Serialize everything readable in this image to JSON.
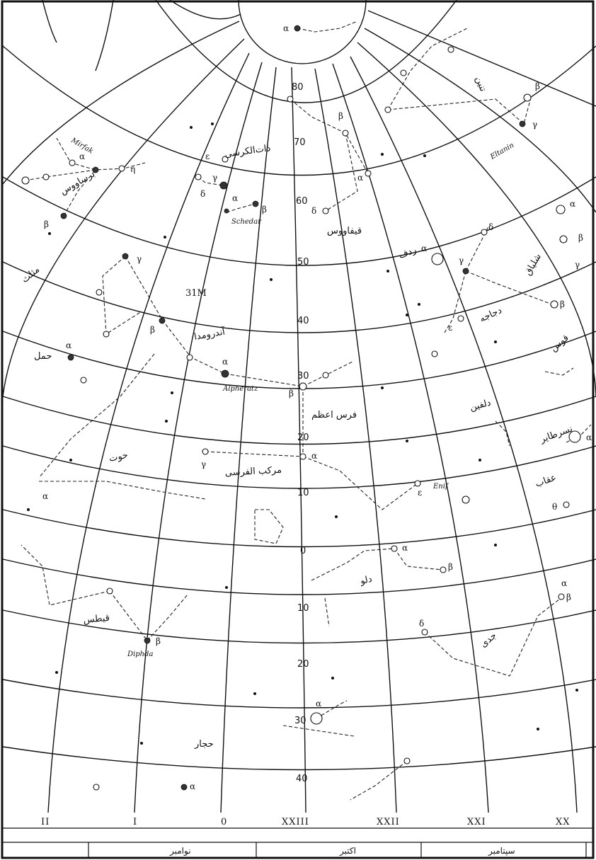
{
  "declination_labels": [
    "80",
    "70",
    "60",
    "50",
    "40",
    "30",
    "20",
    "10",
    "0",
    "10",
    "20",
    "30",
    "40"
  ],
  "ra_labels": [
    "II",
    "I",
    "0",
    "XXIII",
    "XXII",
    "XXI",
    "XX"
  ],
  "month_labels": [
    "نوامبر",
    "اکتبر",
    "سپتامبر"
  ],
  "constellations": {
    "tannin": "تنین",
    "dhat_al_kursi": "ذات‌الکرسی",
    "barsawus": "برساووس",
    "qifawus": "قیفاووس",
    "mosallas": "مثلث",
    "radf": "ردف",
    "shaliyaq": "شلیاق",
    "dajaja": "دجاجه",
    "andromeda": "آندرومدا",
    "hamal": "حمل",
    "qaws": "قوس",
    "faras_azam": "فرس اعظم",
    "dolfin": "دلفین",
    "nasr_tair": "نسرطایر",
    "hut": "حوت",
    "markab_alfarasi": "مرکب الفرسی",
    "oqab": "عقاب",
    "dalw": "دلو",
    "qitus": "قیطس",
    "jadi": "جدی",
    "hajjar": "حجار"
  },
  "star_names": {
    "mirfak": "Mirfak",
    "schedar": "Schedar",
    "eltanin": "Eltanin",
    "alpheratz": "Alpheratz",
    "enif": "Enif",
    "diphda": "Diphda"
  },
  "m31_label": "31M",
  "greek": {
    "alpha": "α",
    "beta": "β",
    "gamma": "γ",
    "delta": "δ",
    "epsilon": "ε",
    "eta": "η",
    "theta": "θ"
  }
}
